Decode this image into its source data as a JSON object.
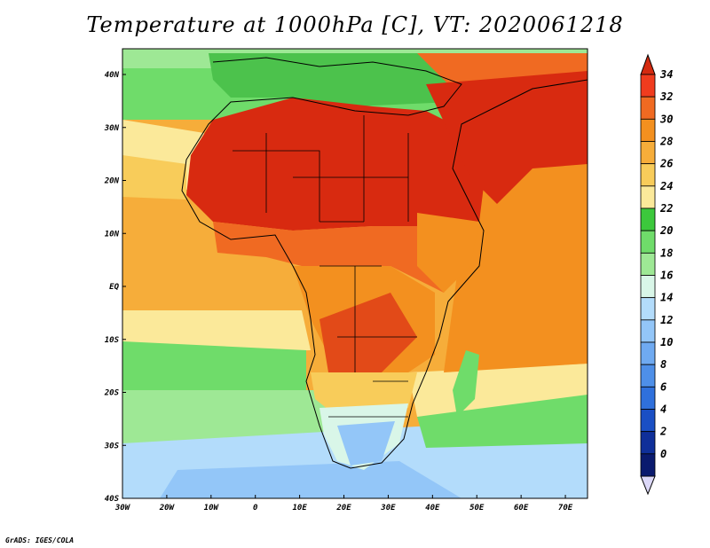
{
  "title": "Temperature at 1000hPa [C], VT: 2020061218",
  "credit": "GrADS: IGES/COLA",
  "map": {
    "lon_range": [
      -30,
      75
    ],
    "lat_range": [
      -40,
      45
    ],
    "lon_ticks": [
      "30W",
      "20W",
      "10W",
      "0",
      "10E",
      "20E",
      "30E",
      "40E",
      "50E",
      "60E",
      "70E"
    ],
    "lat_ticks": [
      "40N",
      "30N",
      "20N",
      "10N",
      "EQ",
      "10S",
      "20S",
      "30S",
      "40S"
    ]
  },
  "colorbar": {
    "levels": [
      "34",
      "32",
      "30",
      "28",
      "26",
      "24",
      "22",
      "20",
      "18",
      "16",
      "14",
      "12",
      "10",
      "8",
      "6",
      "4",
      "2",
      "0"
    ],
    "colors": [
      "#f03c1e",
      "#f06a22",
      "#f3901f",
      "#f6ad3a",
      "#f8cc5a",
      "#fbe99a",
      "#3cc83c",
      "#6fdc6a",
      "#9ee895",
      "#d9f6e8",
      "#b3dcfb",
      "#93c6f8",
      "#6faaf1",
      "#4e8fe8",
      "#2f70dc",
      "#1a4fc4",
      "#0f2f99",
      "#0a1a6e"
    ],
    "max_tip": "#d42a10",
    "min_tip": "#dcd8f8"
  },
  "regions": [
    {
      "name": "north-atlantic-green",
      "color": "#55c855"
    },
    {
      "name": "mediterranean-green",
      "color": "#4cc24c"
    },
    {
      "name": "sahara-hot",
      "color": "#d82a10"
    },
    {
      "name": "arabia-hot",
      "color": "#d82a10"
    },
    {
      "name": "east-africa-highlands",
      "color": "#f06a22"
    },
    {
      "name": "congo-basin",
      "color": "#f6ad3a"
    },
    {
      "name": "south-atlantic-warm",
      "color": "#f6ad3a"
    },
    {
      "name": "indian-ocean-warm",
      "color": "#f3901f"
    },
    {
      "name": "southern-ocean-cool",
      "color": "#b3dcfb"
    },
    {
      "name": "south-africa-cool",
      "color": "#93c6f8"
    }
  ]
}
